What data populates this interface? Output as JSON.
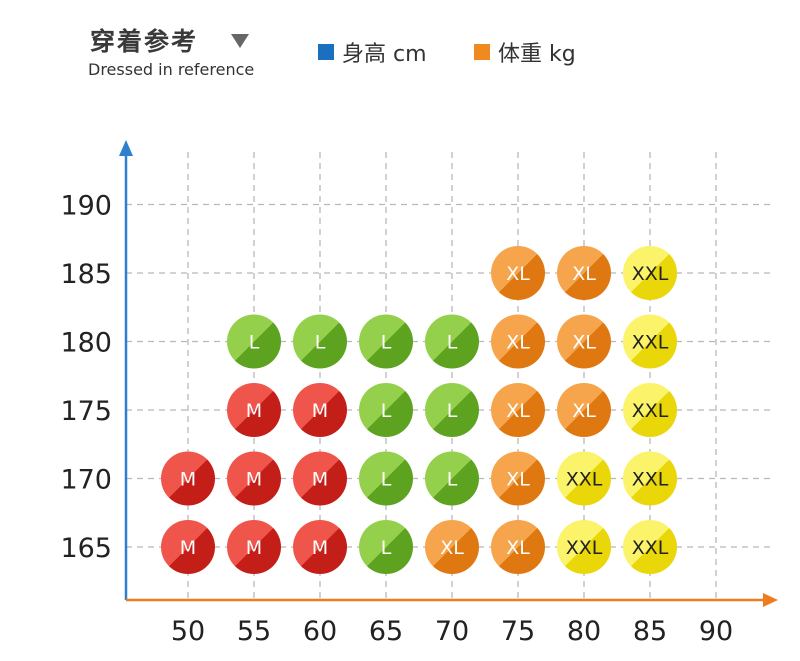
{
  "header": {
    "title": "穿着参考",
    "subtitle": "Dressed in reference"
  },
  "legend": [
    {
      "label": "身高 cm",
      "color": "#1a6fc0"
    },
    {
      "label": "体重 kg",
      "color": "#ee8a1f"
    }
  ],
  "colors": {
    "M": "#de2a22",
    "L": "#73b82c",
    "XL": "#ef8a1e",
    "XXL": "#f4e412",
    "y_axis": "#2f7fd0",
    "x_axis": "#ee7d22",
    "grid": "#b8b8b8"
  },
  "chart_data": {
    "type": "scatter",
    "title": "",
    "xlabel": "体重 kg",
    "ylabel": "身高 cm",
    "x_ticks": [
      50,
      55,
      60,
      65,
      70,
      75,
      80,
      85,
      90
    ],
    "y_ticks": [
      165,
      170,
      175,
      180,
      185,
      190
    ],
    "grid": true,
    "points": [
      {
        "x": 50,
        "y": 165,
        "size": "M"
      },
      {
        "x": 55,
        "y": 165,
        "size": "M"
      },
      {
        "x": 60,
        "y": 165,
        "size": "M"
      },
      {
        "x": 65,
        "y": 165,
        "size": "L"
      },
      {
        "x": 70,
        "y": 165,
        "size": "XL"
      },
      {
        "x": 75,
        "y": 165,
        "size": "XL"
      },
      {
        "x": 80,
        "y": 165,
        "size": "XXL"
      },
      {
        "x": 85,
        "y": 165,
        "size": "XXL"
      },
      {
        "x": 50,
        "y": 170,
        "size": "M"
      },
      {
        "x": 55,
        "y": 170,
        "size": "M"
      },
      {
        "x": 60,
        "y": 170,
        "size": "M"
      },
      {
        "x": 65,
        "y": 170,
        "size": "L"
      },
      {
        "x": 70,
        "y": 170,
        "size": "L"
      },
      {
        "x": 75,
        "y": 170,
        "size": "XL"
      },
      {
        "x": 80,
        "y": 170,
        "size": "XXL"
      },
      {
        "x": 85,
        "y": 170,
        "size": "XXL"
      },
      {
        "x": 55,
        "y": 175,
        "size": "M"
      },
      {
        "x": 60,
        "y": 175,
        "size": "M"
      },
      {
        "x": 65,
        "y": 175,
        "size": "L"
      },
      {
        "x": 70,
        "y": 175,
        "size": "L"
      },
      {
        "x": 75,
        "y": 175,
        "size": "XL"
      },
      {
        "x": 80,
        "y": 175,
        "size": "XL"
      },
      {
        "x": 85,
        "y": 175,
        "size": "XXL"
      },
      {
        "x": 55,
        "y": 180,
        "size": "L"
      },
      {
        "x": 60,
        "y": 180,
        "size": "L"
      },
      {
        "x": 65,
        "y": 180,
        "size": "L"
      },
      {
        "x": 70,
        "y": 180,
        "size": "L"
      },
      {
        "x": 75,
        "y": 180,
        "size": "XL"
      },
      {
        "x": 80,
        "y": 180,
        "size": "XL"
      },
      {
        "x": 85,
        "y": 180,
        "size": "XXL"
      },
      {
        "x": 75,
        "y": 185,
        "size": "XL"
      },
      {
        "x": 80,
        "y": 185,
        "size": "XL"
      },
      {
        "x": 85,
        "y": 185,
        "size": "XXL"
      }
    ]
  }
}
